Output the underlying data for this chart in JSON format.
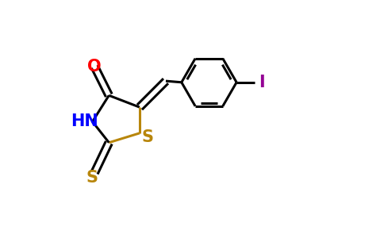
{
  "background_color": "#ffffff",
  "atom_colors": {
    "O": "#ff0000",
    "N": "#0000ff",
    "S": "#b8860b",
    "I": "#940094",
    "C": "#000000"
  },
  "bond_lw": 2.2,
  "font_size": 15,
  "fig_width": 4.84,
  "fig_height": 3.0,
  "xlim": [
    0.0,
    1.0
  ],
  "ylim": [
    0.05,
    0.95
  ]
}
